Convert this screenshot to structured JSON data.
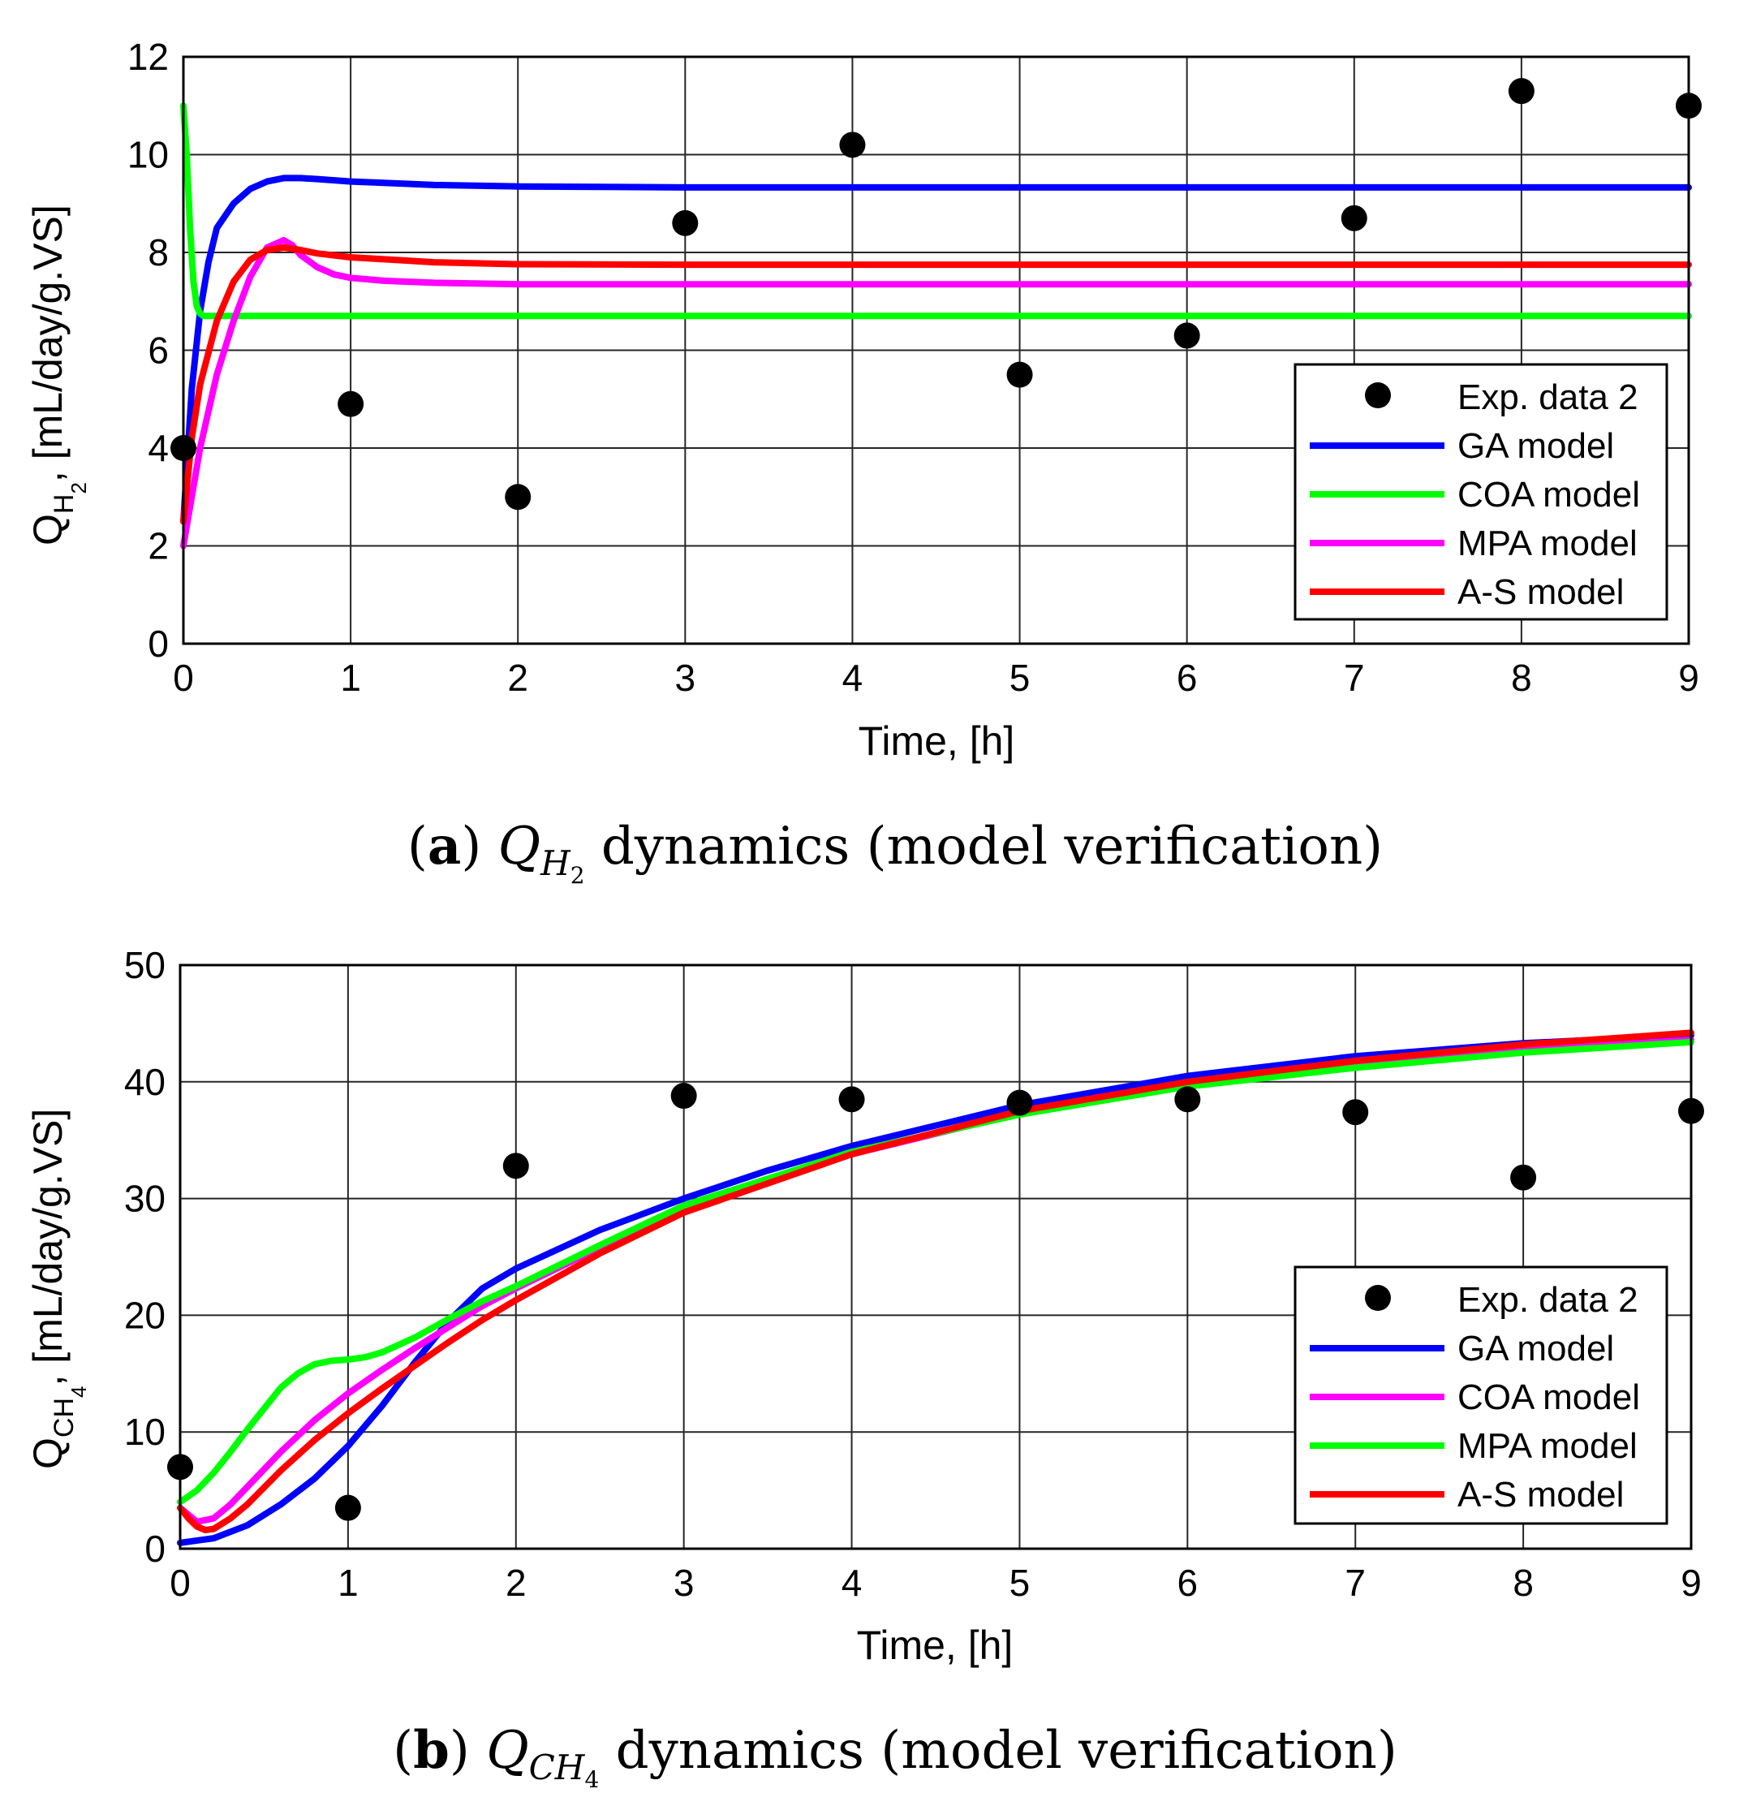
{
  "colors": {
    "blue": "#0000ff",
    "green": "#00ff00",
    "magenta": "#ff00ff",
    "red": "#ff0000",
    "black": "#000000"
  },
  "chart_data": [
    {
      "type": "line",
      "panel": "a",
      "xlabel": "Time, [h]",
      "ylabel": {
        "symbol": "Q",
        "subscript": "H",
        "subsubscript": "2",
        "units": ", [mL/day/g.VS]"
      },
      "caption": {
        "letter": "a",
        "symbol": "Q",
        "subscript": "H",
        "subsubscript": "2",
        "text": "dynamics (model verification)"
      },
      "xlim": [
        0,
        9
      ],
      "ylim": [
        0,
        12
      ],
      "xticks": [
        "0",
        "1",
        "2",
        "3",
        "4",
        "5",
        "6",
        "7",
        "8",
        "9"
      ],
      "yticks": [
        "0",
        "2",
        "4",
        "6",
        "8",
        "10",
        "12"
      ],
      "grid": true,
      "legend_position": "bottom-right",
      "scatter": {
        "name": "Exp. data 2",
        "color_key": "black",
        "x": [
          0,
          1,
          2,
          3,
          4,
          5,
          6,
          7,
          8,
          9
        ],
        "y": [
          4.0,
          4.9,
          3.0,
          8.6,
          10.2,
          5.5,
          6.3,
          8.7,
          11.3,
          11.0
        ]
      },
      "series": [
        {
          "name": "GA model",
          "color_key": "blue",
          "x": [
            0,
            0.05,
            0.1,
            0.15,
            0.2,
            0.3,
            0.4,
            0.5,
            0.6,
            0.7,
            0.8,
            1.0,
            1.5,
            2.0,
            3.0,
            9.0
          ],
          "y": [
            2.5,
            5.2,
            6.8,
            7.8,
            8.5,
            9.0,
            9.3,
            9.45,
            9.52,
            9.52,
            9.5,
            9.45,
            9.38,
            9.35,
            9.33,
            9.33
          ]
        },
        {
          "name": "COA model",
          "color_key": "green",
          "x": [
            0,
            0.02,
            0.04,
            0.06,
            0.08,
            0.1,
            0.12,
            0.15,
            0.2,
            9.0
          ],
          "y": [
            11.0,
            10.0,
            8.5,
            7.4,
            6.9,
            6.75,
            6.7,
            6.7,
            6.7,
            6.7
          ]
        },
        {
          "name": "MPA model",
          "color_key": "magenta",
          "x": [
            0,
            0.05,
            0.1,
            0.2,
            0.3,
            0.4,
            0.5,
            0.6,
            0.65,
            0.7,
            0.8,
            0.9,
            1.0,
            1.2,
            1.5,
            2.0,
            9.0
          ],
          "y": [
            2.0,
            3.0,
            4.0,
            5.5,
            6.6,
            7.5,
            8.1,
            8.25,
            8.15,
            7.95,
            7.7,
            7.55,
            7.48,
            7.42,
            7.38,
            7.35,
            7.35
          ]
        },
        {
          "name": "A-S model",
          "color_key": "red",
          "x": [
            0,
            0.05,
            0.1,
            0.2,
            0.3,
            0.4,
            0.5,
            0.6,
            0.7,
            0.8,
            1.0,
            1.5,
            2.0,
            3.0,
            9.0
          ],
          "y": [
            2.5,
            4.2,
            5.3,
            6.6,
            7.4,
            7.85,
            8.05,
            8.1,
            8.05,
            7.98,
            7.9,
            7.8,
            7.76,
            7.75,
            7.75
          ]
        }
      ]
    },
    {
      "type": "line",
      "panel": "b",
      "xlabel": "Time, [h]",
      "ylabel": {
        "symbol": "Q",
        "subscript": "CH",
        "subsubscript": "4",
        "units": ", [mL/day/g.VS]"
      },
      "caption": {
        "letter": "b",
        "symbol": "Q",
        "subscript": "CH",
        "subsubscript": "4",
        "text": "dynamics (model verification)"
      },
      "xlim": [
        0,
        9
      ],
      "ylim": [
        0,
        50
      ],
      "xticks": [
        "0",
        "1",
        "2",
        "3",
        "4",
        "5",
        "6",
        "7",
        "8",
        "9"
      ],
      "yticks": [
        "0",
        "10",
        "20",
        "30",
        "40",
        "50"
      ],
      "grid": true,
      "legend_position": "bottom-right",
      "scatter": {
        "name": "Exp. data 2",
        "color_key": "black",
        "x": [
          0,
          1,
          2,
          3,
          4,
          5,
          6,
          7,
          8,
          9
        ],
        "y": [
          7.0,
          3.5,
          32.8,
          38.8,
          38.5,
          38.2,
          38.5,
          37.4,
          31.8,
          37.5
        ]
      },
      "series": [
        {
          "name": "GA model",
          "color_key": "blue",
          "x": [
            0,
            0.2,
            0.4,
            0.6,
            0.8,
            1.0,
            1.2,
            1.4,
            1.6,
            1.8,
            2.0,
            2.5,
            3.0,
            3.5,
            4.0,
            5.0,
            6.0,
            7.0,
            8.0,
            9.0
          ],
          "y": [
            0.5,
            0.9,
            2.0,
            3.8,
            6.0,
            8.8,
            12.2,
            16.0,
            19.5,
            22.3,
            24.0,
            27.3,
            30.0,
            32.4,
            34.5,
            38.0,
            40.5,
            42.2,
            43.3,
            44.0
          ]
        },
        {
          "name": "COA model",
          "color_key": "magenta",
          "x": [
            0,
            0.1,
            0.2,
            0.3,
            0.4,
            0.6,
            0.8,
            1.0,
            1.2,
            1.4,
            1.6,
            1.8,
            2.0,
            2.5,
            3.0,
            4.0,
            5.0,
            6.0,
            7.0,
            8.0,
            9.0
          ],
          "y": [
            3.5,
            2.3,
            2.6,
            3.8,
            5.3,
            8.3,
            11.0,
            13.3,
            15.3,
            17.2,
            19.0,
            20.8,
            22.3,
            25.8,
            29.0,
            33.8,
            37.3,
            39.8,
            41.4,
            42.7,
            43.6
          ]
        },
        {
          "name": "MPA model",
          "color_key": "green",
          "x": [
            0,
            0.1,
            0.2,
            0.3,
            0.4,
            0.5,
            0.6,
            0.7,
            0.8,
            0.9,
            1.0,
            1.1,
            1.2,
            1.4,
            1.6,
            1.8,
            2.0,
            2.5,
            3.0,
            4.0,
            5.0,
            6.0,
            7.0,
            8.0,
            9.0
          ],
          "y": [
            4.0,
            5.0,
            6.5,
            8.3,
            10.2,
            12.0,
            13.8,
            15.0,
            15.8,
            16.1,
            16.2,
            16.4,
            16.8,
            18.1,
            19.7,
            21.2,
            22.5,
            26.0,
            29.4,
            34.0,
            37.2,
            39.6,
            41.2,
            42.5,
            43.4
          ]
        },
        {
          "name": "A-S model",
          "color_key": "red",
          "x": [
            0,
            0.05,
            0.1,
            0.15,
            0.2,
            0.3,
            0.4,
            0.6,
            0.8,
            1.0,
            1.2,
            1.4,
            1.6,
            1.8,
            2.0,
            2.5,
            3.0,
            4.0,
            5.0,
            6.0,
            7.0,
            8.0,
            9.0
          ],
          "y": [
            3.5,
            2.6,
            1.9,
            1.6,
            1.7,
            2.6,
            3.8,
            6.7,
            9.3,
            11.6,
            13.7,
            15.7,
            17.7,
            19.6,
            21.3,
            25.3,
            28.8,
            33.8,
            37.5,
            40.0,
            41.8,
            43.2,
            44.2
          ]
        }
      ]
    }
  ]
}
